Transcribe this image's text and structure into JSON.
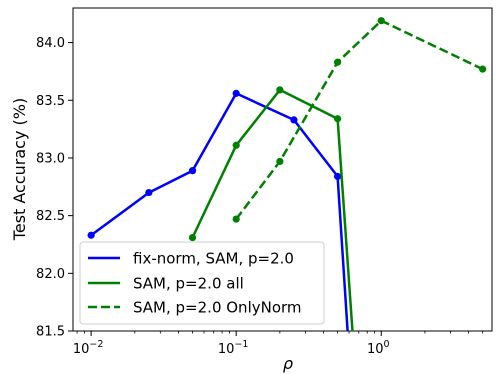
{
  "chart_data": {
    "type": "line",
    "xlabel": "ρ",
    "ylabel": "Test Accuracy (%)",
    "xscale": "log",
    "xlim": [
      0.0075,
      5.8
    ],
    "ylim": [
      81.5,
      84.3
    ],
    "x_ticks": [
      {
        "value": 0.01,
        "base": "10",
        "exp": "−2"
      },
      {
        "value": 0.1,
        "base": "10",
        "exp": "−1"
      },
      {
        "value": 1,
        "base": "10",
        "exp": "0"
      }
    ],
    "y_ticks": [
      {
        "value": 81.5,
        "label": "81.5"
      },
      {
        "value": 82.0,
        "label": "82.0"
      },
      {
        "value": 82.5,
        "label": "82.5"
      },
      {
        "value": 83.0,
        "label": "83.0"
      },
      {
        "value": 83.5,
        "label": "83.5"
      },
      {
        "value": 84.0,
        "label": "84.0"
      }
    ],
    "legend_position": "lower-left",
    "series": [
      {
        "name": "fix-norm, SAM, p=2.0",
        "color": "#0000ff",
        "dash": "solid",
        "markers": true,
        "x": [
          0.01,
          0.025,
          0.05,
          0.1,
          0.25,
          0.5,
          0.6
        ],
        "y": [
          82.33,
          82.7,
          82.89,
          83.56,
          83.33,
          82.84,
          81.3
        ],
        "marker_mask": [
          1,
          1,
          1,
          1,
          1,
          1,
          0
        ]
      },
      {
        "name": "SAM, p=2.0 all",
        "color": "#008000",
        "dash": "solid",
        "markers": true,
        "x": [
          0.05,
          0.1,
          0.2,
          0.5,
          0.65
        ],
        "y": [
          82.31,
          83.11,
          83.59,
          83.34,
          81.3
        ],
        "marker_mask": [
          1,
          1,
          1,
          1,
          0
        ]
      },
      {
        "name": "SAM, p=2.0 OnlyNorm",
        "color": "#008000",
        "dash": "dashed",
        "markers": true,
        "x": [
          0.1,
          0.2,
          0.5,
          1.0,
          5.0
        ],
        "y": [
          82.47,
          82.97,
          83.83,
          84.19,
          83.77
        ],
        "marker_mask": [
          1,
          1,
          1,
          1,
          1
        ]
      }
    ]
  }
}
